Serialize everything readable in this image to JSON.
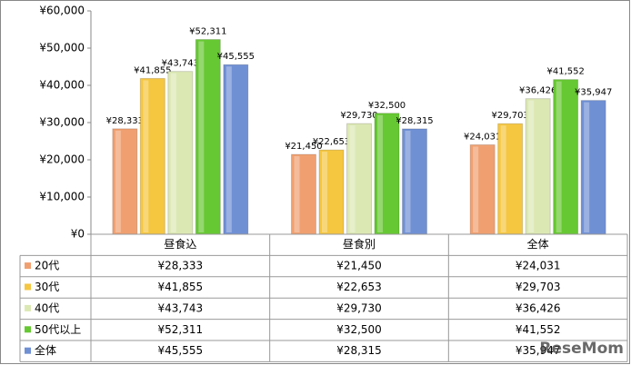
{
  "chart_data": {
    "type": "bar",
    "categories": [
      "昼食込",
      "昼食別",
      "全体"
    ],
    "series": [
      {
        "name": "20代",
        "color": "#f0a070",
        "values": [
          28333,
          21450,
          24031
        ],
        "value_labels": [
          "¥28,333",
          "¥21,450",
          "¥24,031"
        ]
      },
      {
        "name": "30代",
        "color": "#f5c640",
        "values": [
          41855,
          22653,
          29703
        ],
        "value_labels": [
          "¥41,855",
          "¥22,653",
          "¥29,703"
        ]
      },
      {
        "name": "40代",
        "color": "#dce8b4",
        "values": [
          43743,
          29730,
          36426
        ],
        "value_labels": [
          "¥43,743",
          "¥29,730",
          "¥36,426"
        ]
      },
      {
        "name": "50代以上",
        "color": "#66c832",
        "values": [
          52311,
          32500,
          41552
        ],
        "value_labels": [
          "¥52,311",
          "¥32,500",
          "¥41,552"
        ]
      },
      {
        "name": "全体",
        "color": "#7090d4",
        "values": [
          45555,
          28315,
          35947
        ],
        "value_labels": [
          "¥45,555",
          "¥28,315",
          "¥35,947"
        ]
      }
    ],
    "ylim": [
      0,
      60000
    ],
    "yticks": [
      {
        "value": 0,
        "label": "¥0"
      },
      {
        "value": 10000,
        "label": "¥10,000"
      },
      {
        "value": 20000,
        "label": "¥20,000"
      },
      {
        "value": 30000,
        "label": "¥30,000"
      },
      {
        "value": 40000,
        "label": "¥40,000"
      },
      {
        "value": 50000,
        "label": "¥50,000"
      },
      {
        "value": 60000,
        "label": "¥60,000"
      }
    ],
    "grid": false,
    "data_table": true,
    "watermark": "ReseMom"
  }
}
